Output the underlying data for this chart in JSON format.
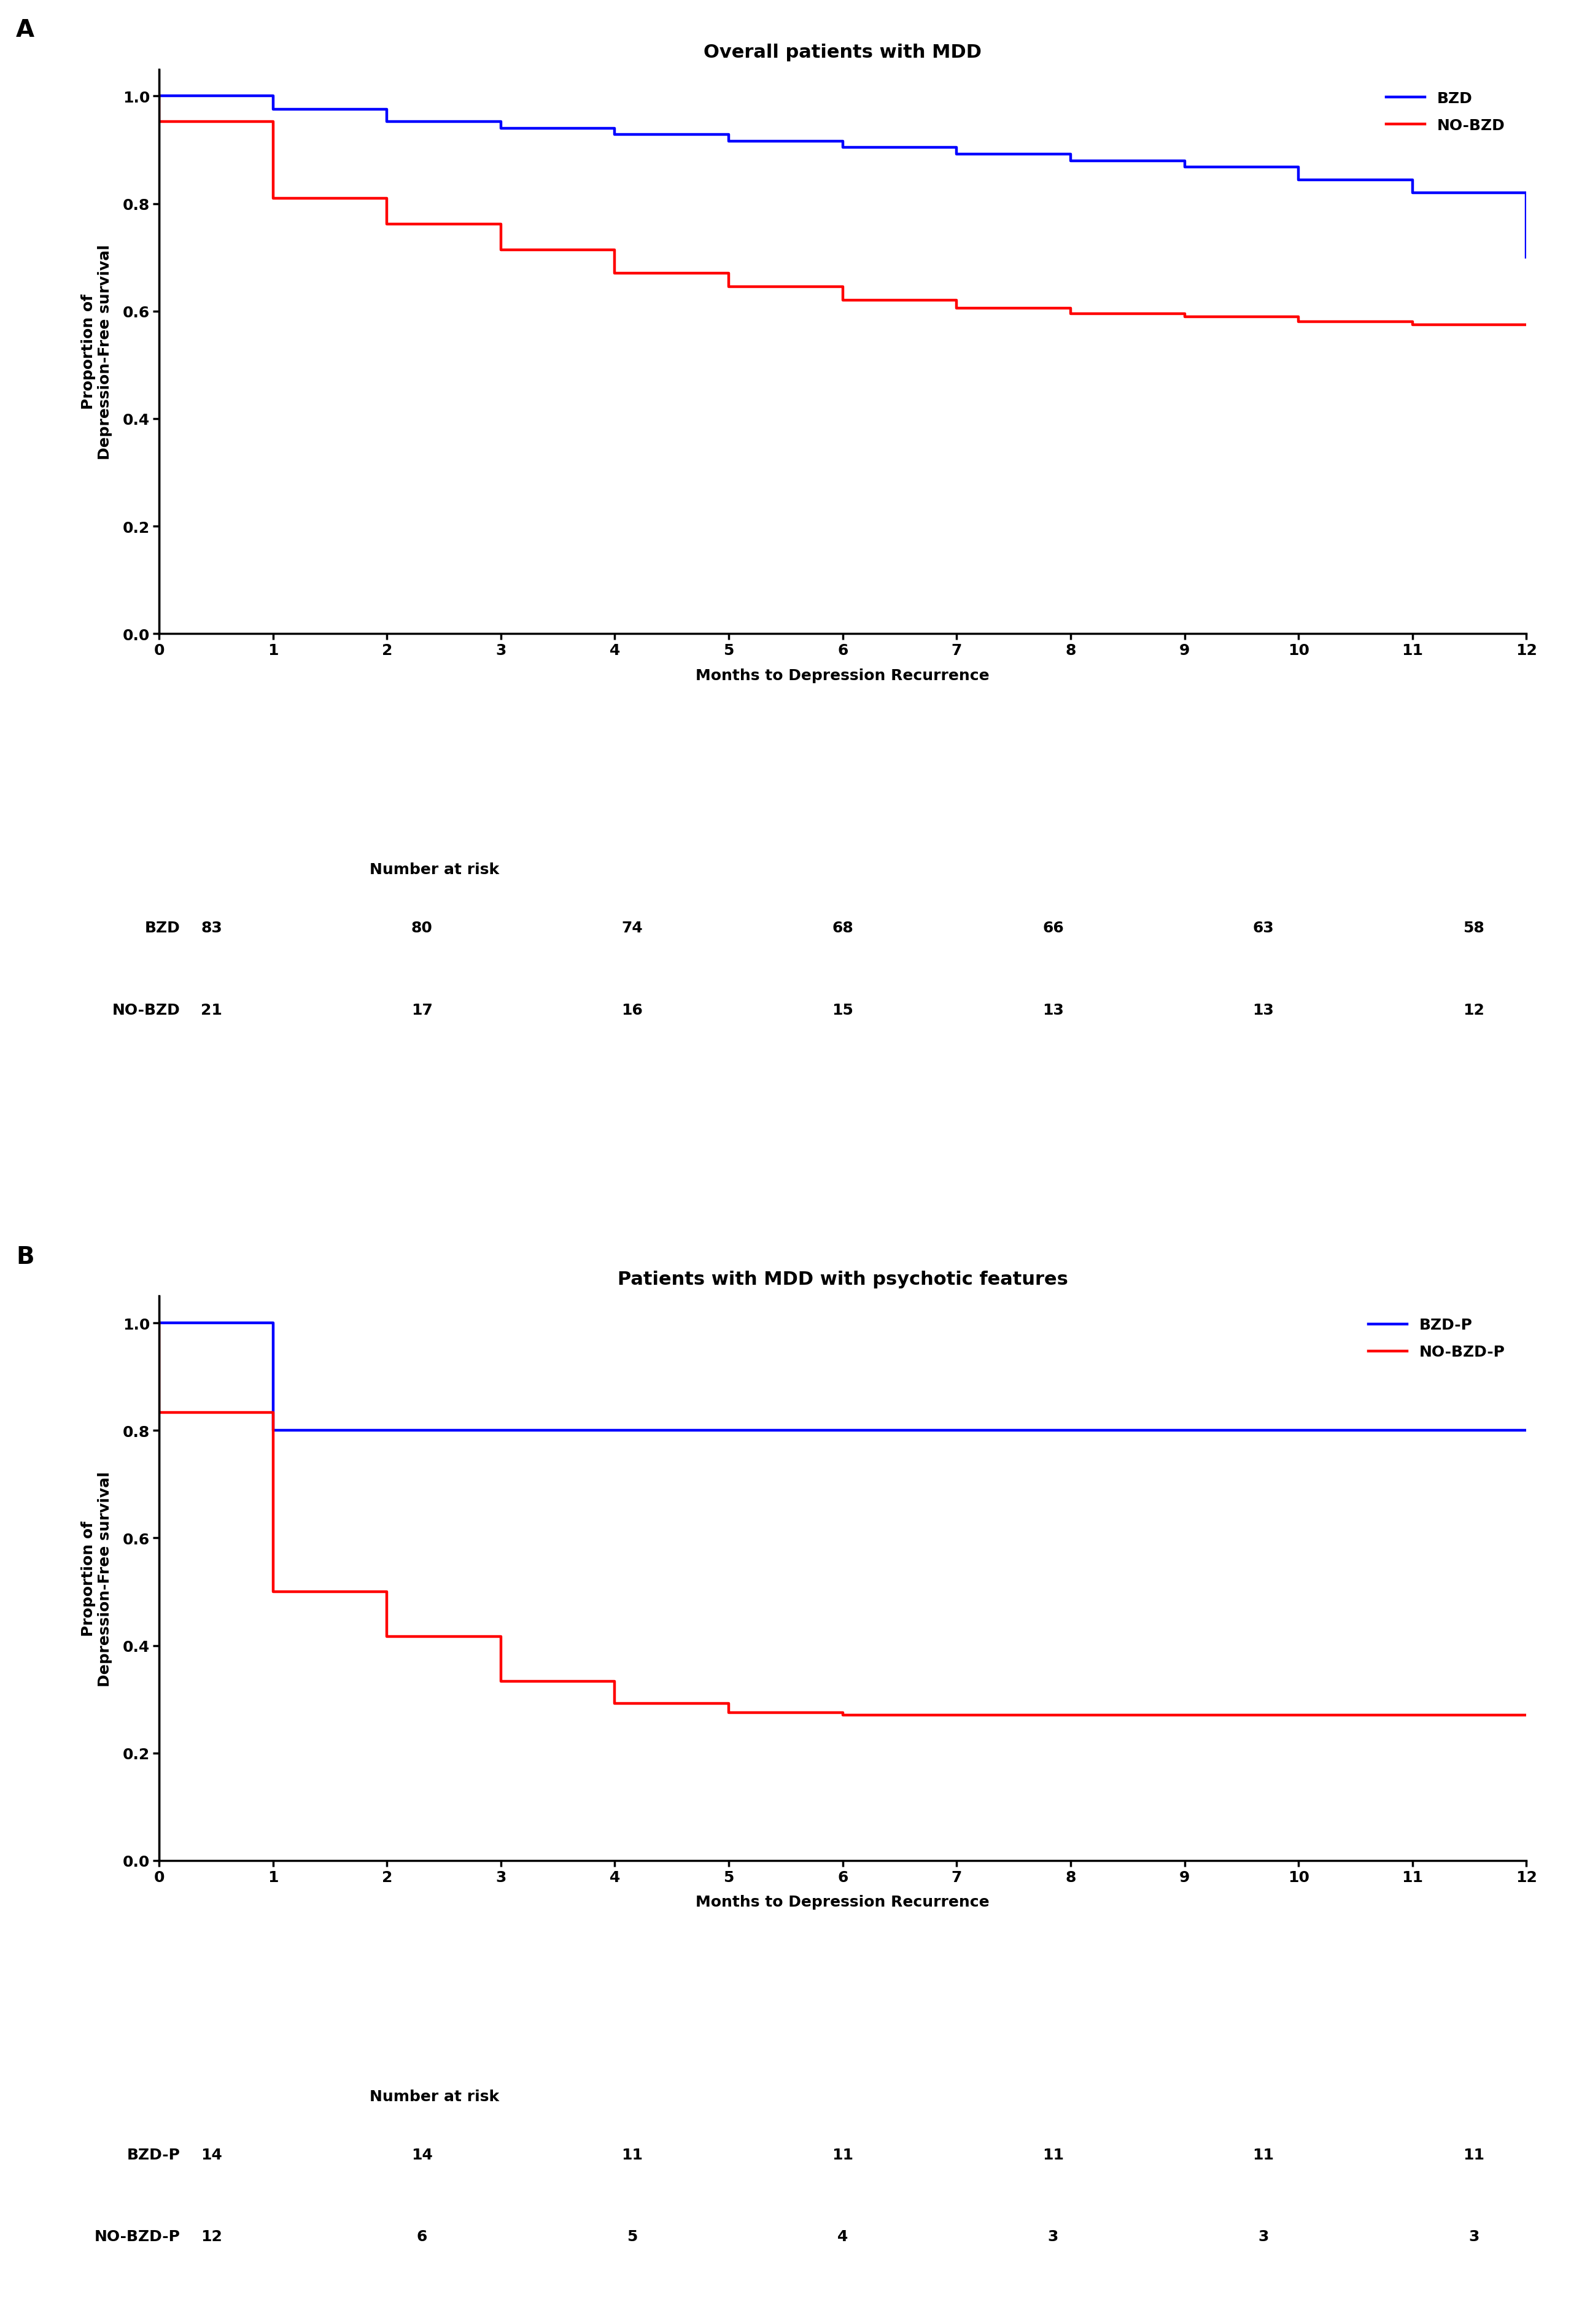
{
  "panel_A": {
    "title": "Overall patients with MDD",
    "label": "A",
    "bzd_color": "#0000FF",
    "nobzd_color": "#FF0000",
    "bzd_label": "BZD",
    "nobzd_label": "NO-BZD",
    "bzd_x": [
      0,
      1,
      1,
      2,
      2,
      3,
      3,
      4,
      4,
      5,
      5,
      6,
      6,
      7,
      7,
      8,
      8,
      9,
      9,
      10,
      10,
      11,
      11,
      12
    ],
    "bzd_y": [
      1.0,
      1.0,
      0.975,
      0.975,
      0.952,
      0.952,
      0.94,
      0.94,
      0.928,
      0.928,
      0.916,
      0.916,
      0.904,
      0.904,
      0.892,
      0.892,
      0.88,
      0.88,
      0.868,
      0.868,
      0.844,
      0.844,
      0.82,
      0.7
    ],
    "nobzd_x": [
      0,
      0,
      1,
      1,
      2,
      2,
      3,
      3,
      4,
      4,
      5,
      5,
      6,
      6,
      7,
      7,
      8,
      8,
      9,
      9,
      10,
      10,
      11,
      11,
      12
    ],
    "nobzd_y": [
      1.0,
      0.952,
      0.952,
      0.81,
      0.81,
      0.762,
      0.762,
      0.714,
      0.714,
      0.67,
      0.67,
      0.645,
      0.645,
      0.62,
      0.62,
      0.605,
      0.605,
      0.595,
      0.595,
      0.59,
      0.59,
      0.58,
      0.58,
      0.575,
      0.575
    ],
    "xlabel": "Months to Depression Recurrence",
    "ylabel": "Proportion of\nDepression-Free survival",
    "xlim": [
      0,
      12
    ],
    "ylim": [
      0.0,
      1.05
    ],
    "yticks": [
      0.0,
      0.2,
      0.4,
      0.6,
      0.8,
      1.0
    ],
    "xticks": [
      0,
      1,
      2,
      3,
      4,
      5,
      6,
      7,
      8,
      9,
      10,
      11,
      12
    ],
    "risk_header": "Number at risk",
    "risk_rows": [
      {
        "label": "BZD",
        "values": [
          83,
          80,
          74,
          68,
          66,
          63,
          58
        ]
      },
      {
        "label": "NO-BZD",
        "values": [
          21,
          17,
          16,
          15,
          13,
          13,
          12
        ]
      }
    ],
    "risk_col_positions": [
      0,
      2,
      4,
      6,
      8,
      10,
      12
    ]
  },
  "panel_B": {
    "title": "Patients with MDD with psychotic features",
    "label": "B",
    "bzd_color": "#0000FF",
    "nobzd_color": "#FF0000",
    "bzd_label": "BZD-P",
    "nobzd_label": "NO-BZD-P",
    "bzd_x": [
      0,
      1,
      1,
      2,
      2,
      12
    ],
    "bzd_y": [
      1.0,
      1.0,
      0.8,
      0.8,
      0.8,
      0.8
    ],
    "nobzd_x": [
      0,
      0,
      1,
      1,
      2,
      2,
      3,
      3,
      4,
      4,
      5,
      5,
      6,
      6,
      12
    ],
    "nobzd_y": [
      1.0,
      0.833,
      0.833,
      0.5,
      0.5,
      0.417,
      0.417,
      0.333,
      0.333,
      0.292,
      0.292,
      0.275,
      0.275,
      0.27,
      0.27
    ],
    "xlabel": "Months to Depression Recurrence",
    "ylabel": "Proportion of\nDepression-Free survival",
    "xlim": [
      0,
      12
    ],
    "ylim": [
      0.0,
      1.05
    ],
    "yticks": [
      0.0,
      0.2,
      0.4,
      0.6,
      0.8,
      1.0
    ],
    "xticks": [
      0,
      1,
      2,
      3,
      4,
      5,
      6,
      7,
      8,
      9,
      10,
      11,
      12
    ],
    "risk_header": "Number at risk",
    "risk_rows": [
      {
        "label": "BZD-P",
        "values": [
          14,
          14,
          11,
          11,
          11,
          11,
          11
        ]
      },
      {
        "label": "NO-BZD-P",
        "values": [
          12,
          6,
          5,
          4,
          3,
          3,
          3
        ]
      }
    ],
    "risk_col_positions": [
      0,
      2,
      4,
      6,
      8,
      10,
      12
    ]
  },
  "line_width": 3.2,
  "font_size_title": 22,
  "font_size_ylabel": 18,
  "font_size_xlabel": 18,
  "font_size_tick": 18,
  "font_size_legend": 18,
  "font_size_risk_header": 18,
  "font_size_risk_values": 18,
  "font_size_panel_label": 28,
  "background_color": "#FFFFFF"
}
